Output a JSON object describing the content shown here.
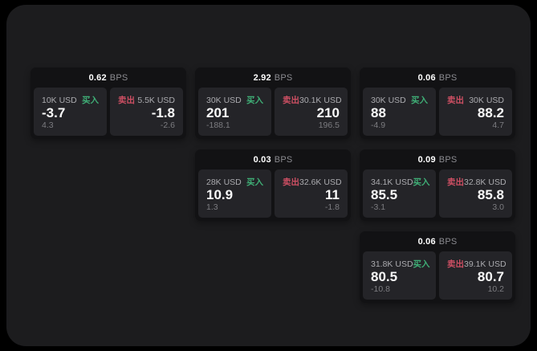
{
  "colors": {
    "background": "#000000",
    "surface": "#1c1c1e",
    "card": "#121214",
    "panel": "#242428",
    "buy_green": "#3fae76",
    "sell_red": "#cd4f63"
  },
  "cards": [
    {
      "bps": "0.62",
      "bps_unit": "BPS",
      "grid": {
        "col": 1,
        "row": 1
      },
      "buy": {
        "size": "10K USD",
        "label": "买入",
        "value": "-3.7",
        "sub": "4.3"
      },
      "sell": {
        "label": "卖出",
        "size": "5.5K USD",
        "value": "-1.8",
        "sub": "-2.6"
      }
    },
    {
      "bps": "2.92",
      "bps_unit": "BPS",
      "grid": {
        "col": 2,
        "row": 1
      },
      "buy": {
        "size": "30K USD",
        "label": "买入",
        "value": "201",
        "sub": "-188.1"
      },
      "sell": {
        "label": "卖出",
        "size": "30.1K USD",
        "value": "210",
        "sub": "196.5"
      }
    },
    {
      "bps": "0.06",
      "bps_unit": "BPS",
      "grid": {
        "col": 3,
        "row": 1
      },
      "buy": {
        "size": "30K USD",
        "label": "买入",
        "value": "88",
        "sub": "-4.9"
      },
      "sell": {
        "label": "卖出",
        "size": "30K USD",
        "value": "88.2",
        "sub": "4.7"
      }
    },
    {
      "bps": "0.03",
      "bps_unit": "BPS",
      "grid": {
        "col": 2,
        "row": 2
      },
      "buy": {
        "size": "28K USD",
        "label": "买入",
        "value": "10.9",
        "sub": "1.3"
      },
      "sell": {
        "label": "卖出",
        "size": "32.6K USD",
        "value": "11",
        "sub": "-1.8"
      }
    },
    {
      "bps": "0.09",
      "bps_unit": "BPS",
      "grid": {
        "col": 3,
        "row": 2
      },
      "buy": {
        "size": "34.1K USD",
        "label": "买入",
        "value": "85.5",
        "sub": "-3.1"
      },
      "sell": {
        "label": "卖出",
        "size": "32.8K USD",
        "value": "85.8",
        "sub": "3.0"
      }
    },
    {
      "bps": "0.06",
      "bps_unit": "BPS",
      "grid": {
        "col": 3,
        "row": 3
      },
      "buy": {
        "size": "31.8K USD",
        "label": "买入",
        "value": "80.5",
        "sub": "-10.8"
      },
      "sell": {
        "label": "卖出",
        "size": "39.1K USD",
        "value": "80.7",
        "sub": "10.2"
      }
    }
  ]
}
